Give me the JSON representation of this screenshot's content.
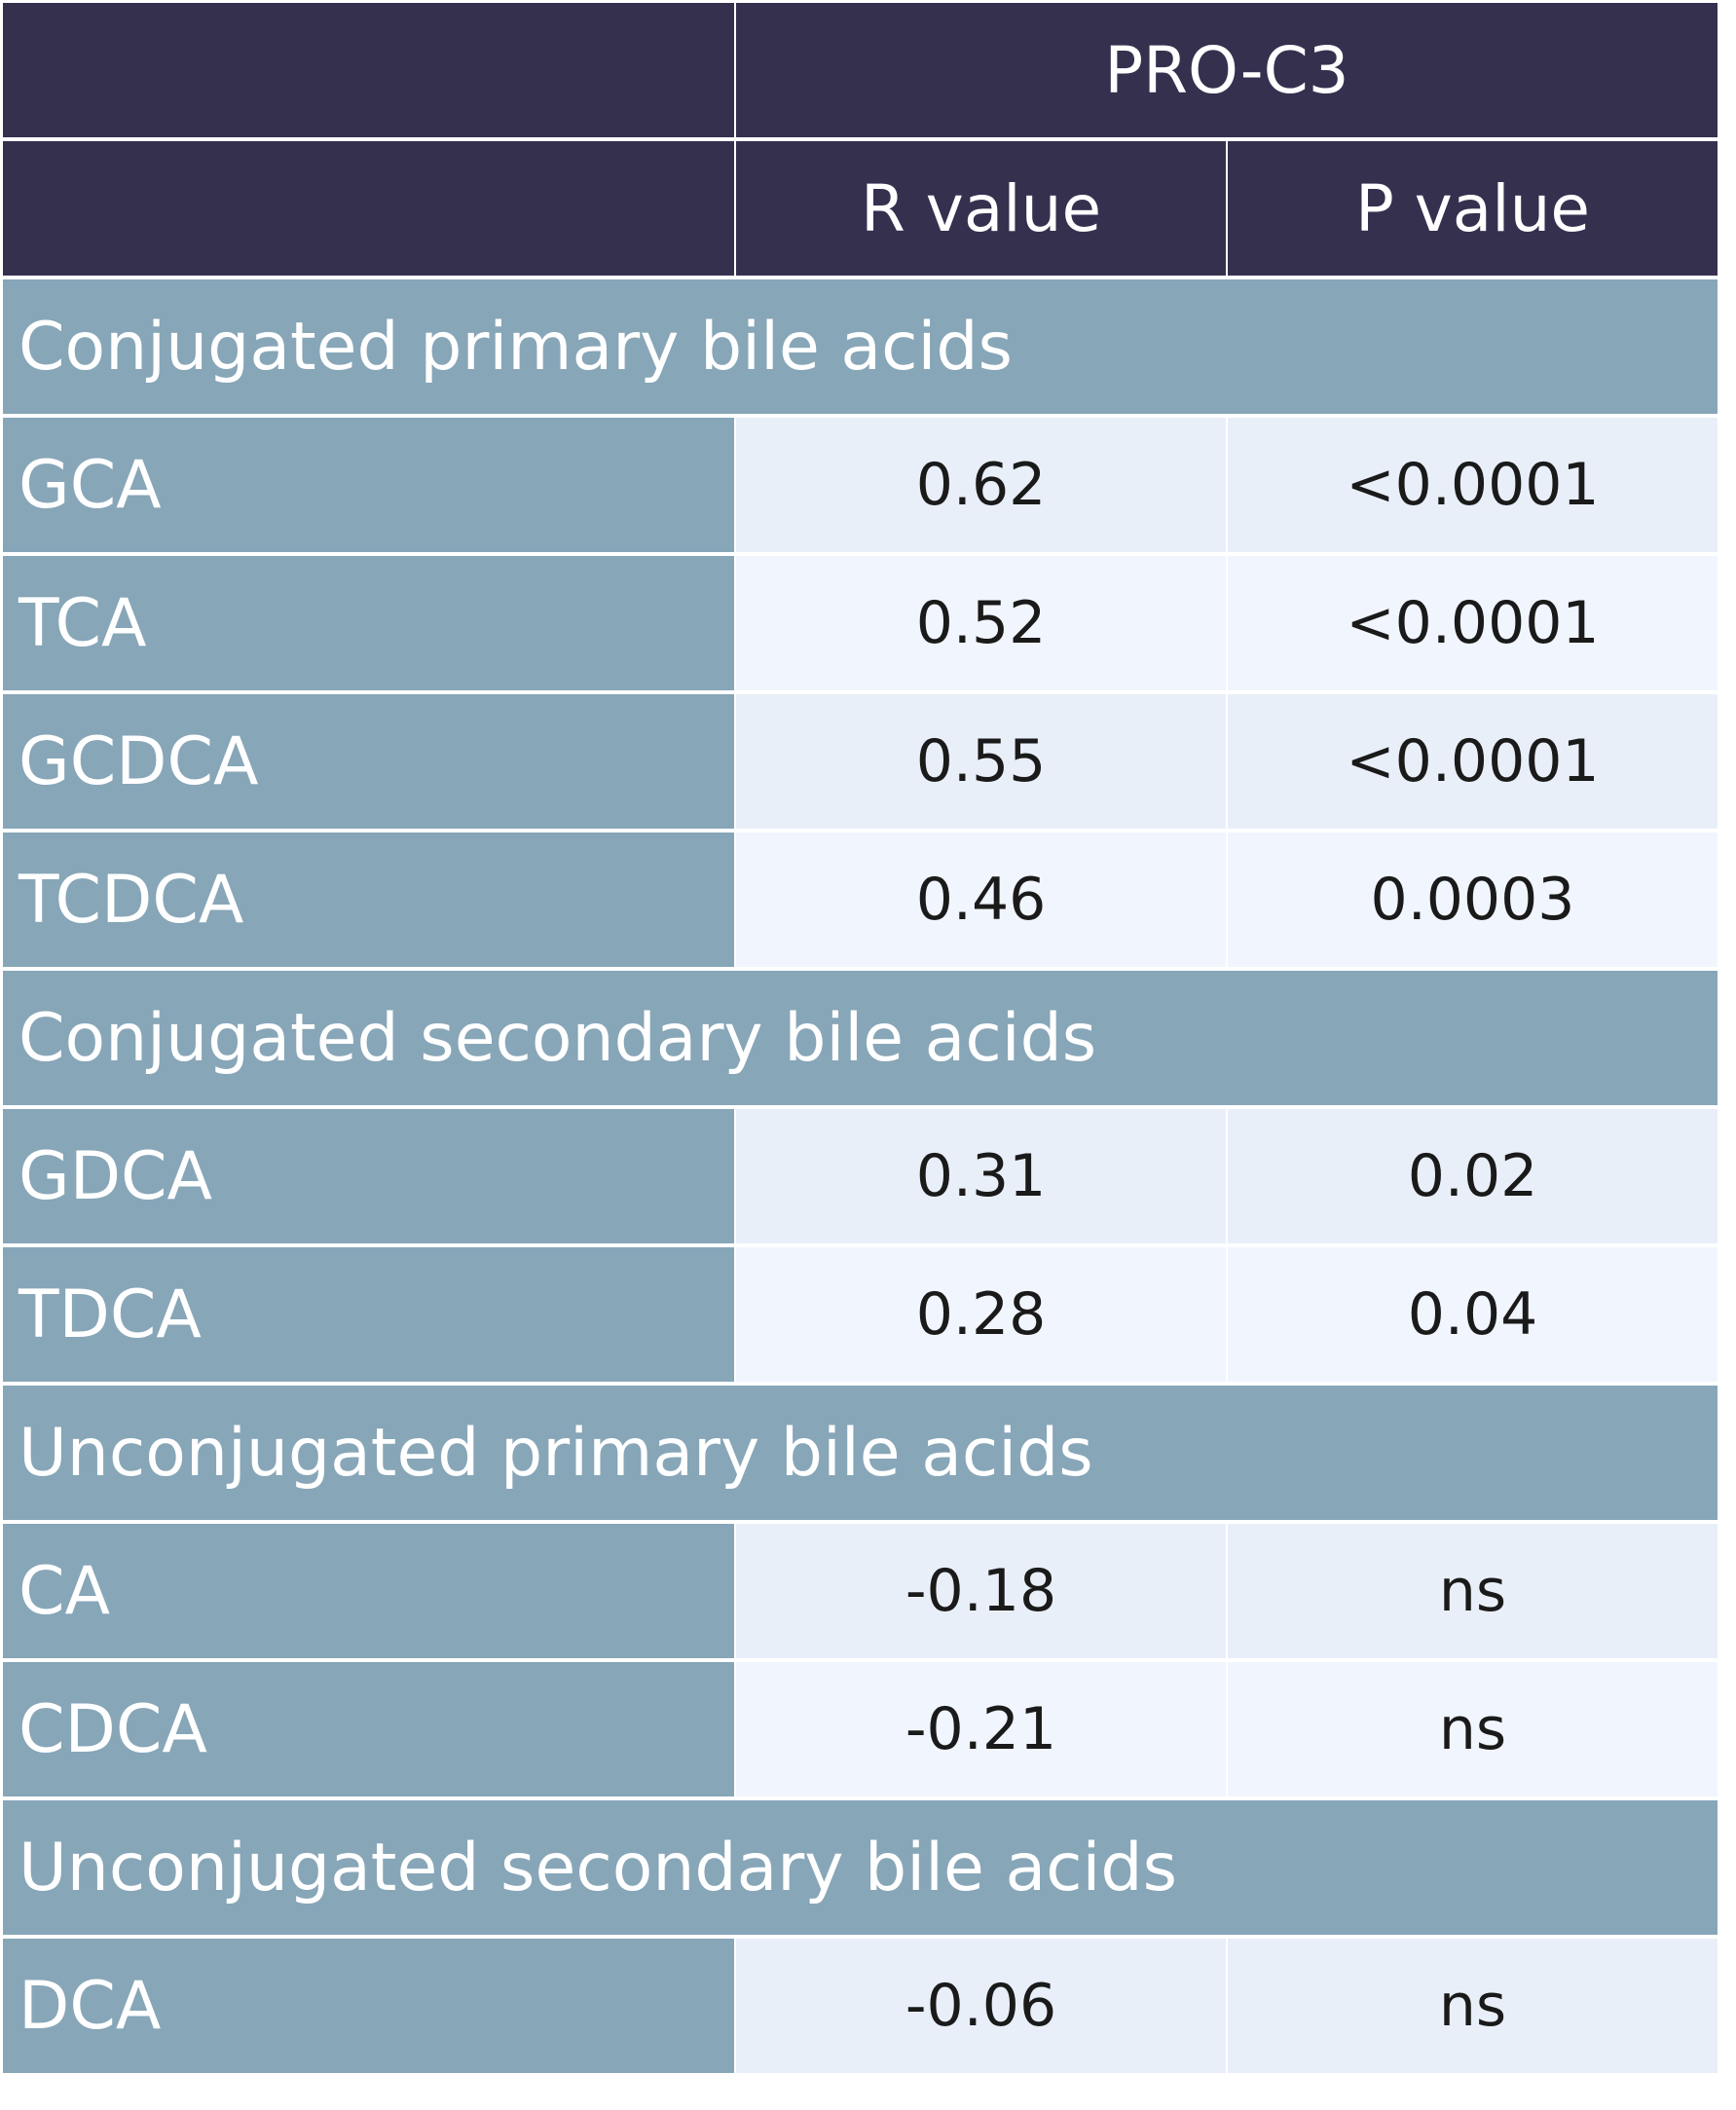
{
  "chart_data": {
    "type": "table",
    "header": {
      "group_label": "PRO-C3",
      "columns": [
        "R value",
        "P value"
      ]
    },
    "sections": [
      {
        "title": "Conjugated primary bile acids",
        "rows": [
          {
            "name": "GCA",
            "r": "0.62",
            "p": "<0.0001"
          },
          {
            "name": "TCA",
            "r": "0.52",
            "p": "<0.0001"
          },
          {
            "name": "GCDCA",
            "r": "0.55",
            "p": "<0.0001"
          },
          {
            "name": "TCDCA",
            "r": "0.46",
            "p": "0.0003"
          }
        ]
      },
      {
        "title": "Conjugated secondary bile acids",
        "rows": [
          {
            "name": "GDCA",
            "r": "0.31",
            "p": "0.02"
          },
          {
            "name": "TDCA",
            "r": "0.28",
            "p": "0.04"
          }
        ]
      },
      {
        "title": "Unconjugated primary bile acids",
        "rows": [
          {
            "name": "CA",
            "r": "-0.18",
            "p": "ns"
          },
          {
            "name": "CDCA",
            "r": "-0.21",
            "p": "ns"
          }
        ]
      },
      {
        "title": "Unconjugated secondary bile acids",
        "rows": [
          {
            "name": "DCA",
            "r": "-0.06",
            "p": "ns"
          }
        ]
      }
    ]
  },
  "colors": {
    "header_bg": "#36304f",
    "label_bg": "#87a6b8",
    "value_bg_shaded": "#e9eff9",
    "value_bg_light": "#f1f5fd"
  }
}
